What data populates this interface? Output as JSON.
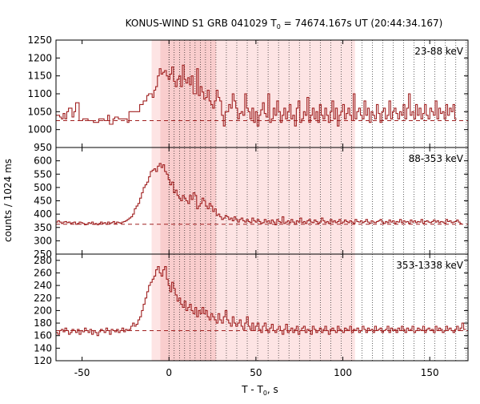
{
  "chart_data": {
    "type": "line",
    "title_main": "KONUS-WIND S1 GRB 041029 T",
    "title_sub": "0",
    "title_rest": " = 74674.167s UT (20:44:34.167)",
    "xlabel_main": "T - T",
    "xlabel_sub": "0",
    "xlabel_rest": ", s",
    "ylabel": "counts / 1024 ms",
    "xlim": [
      -65,
      172
    ],
    "xticks": [
      -50,
      0,
      50,
      100,
      150
    ],
    "colors": {
      "line": "#a02020",
      "shade_outer": "#fde4e4",
      "shade_inner": "#f9cdcd",
      "vline": "#000000"
    },
    "shaded_regions": [
      {
        "x0": -10,
        "x1": 107,
        "kind": "outer"
      },
      {
        "x0": -5,
        "x1": 27,
        "kind": "inner"
      }
    ],
    "dotted_vlines": [
      0,
      3,
      6,
      9,
      12,
      15,
      18,
      21,
      24,
      27,
      33,
      39,
      45,
      51,
      57,
      63,
      69,
      75,
      81,
      87,
      93,
      99,
      105,
      111,
      117,
      123,
      129,
      135,
      141,
      147,
      153,
      159,
      165,
      171
    ],
    "panels": [
      {
        "band": "23-88 keV",
        "ylim": [
          950,
          1250
        ],
        "yticks": [
          950,
          1000,
          1050,
          1100,
          1150,
          1200,
          1250
        ],
        "background": 1025,
        "series": {
          "name": "",
          "x_start": -65,
          "step": 1.024,
          "values": [
            1040,
            1040,
            1035,
            1030,
            1045,
            1030,
            1050,
            1060,
            1060,
            1035,
            1050,
            1075,
            1075,
            1025,
            1025,
            1030,
            1030,
            1030,
            1025,
            1025,
            1025,
            1020,
            1020,
            1020,
            1030,
            1030,
            1030,
            1025,
            1025,
            1040,
            1015,
            1015,
            1030,
            1035,
            1035,
            1030,
            1030,
            1030,
            1030,
            1030,
            1020,
            1050,
            1050,
            1050,
            1050,
            1050,
            1050,
            1070,
            1070,
            1080,
            1080,
            1095,
            1100,
            1100,
            1090,
            1110,
            1120,
            1150,
            1170,
            1155,
            1160,
            1165,
            1150,
            1140,
            1155,
            1175,
            1135,
            1120,
            1140,
            1150,
            1120,
            1180,
            1140,
            1130,
            1145,
            1125,
            1150,
            1100,
            1100,
            1170,
            1095,
            1120,
            1105,
            1085,
            1090,
            1110,
            1080,
            1070,
            1060,
            1080,
            1110,
            1090,
            1080,
            1040,
            1010,
            1050,
            1050,
            1070,
            1060,
            1100,
            1080,
            1060,
            1030,
            1045,
            1050,
            1040,
            1100,
            1060,
            1050,
            1030,
            1060,
            1020,
            1050,
            1010,
            1040,
            1055,
            1075,
            1045,
            1035,
            1100,
            1020,
            1030,
            1060,
            1040,
            1080,
            1050,
            1020,
            1040,
            1060,
            1030,
            1050,
            1070,
            1030,
            1040,
            1010,
            1060,
            1080,
            1020,
            1030,
            1050,
            1040,
            1090,
            1020,
            1040,
            1060,
            1030,
            1050,
            1020,
            1070,
            1040,
            1030,
            1060,
            1040,
            1020,
            1050,
            1080,
            1030,
            1060,
            1010,
            1040,
            1050,
            1070,
            1030,
            1045,
            1060,
            1040,
            1025,
            1100,
            1030,
            1050,
            1060,
            1040,
            1030,
            1080,
            1040,
            1060,
            1020,
            1050,
            1040,
            1030,
            1070,
            1045,
            1020,
            1050,
            1060,
            1030,
            1040,
            1080,
            1030,
            1050,
            1060,
            1045,
            1030,
            1050,
            1040,
            1070,
            1030,
            1060,
            1100,
            1040,
            1050,
            1030,
            1070,
            1040,
            1060,
            1030,
            1045,
            1070,
            1040,
            1030,
            1060,
            1050,
            1040,
            1080,
            1030,
            1060,
            1045,
            1050,
            1030,
            1070,
            1040,
            1060,
            1050,
            1070,
            1030
          ]
        }
      },
      {
        "band": "88-353 keV",
        "ylim": [
          250,
          650
        ],
        "yticks": [
          250,
          300,
          350,
          400,
          450,
          500,
          550,
          600
        ],
        "background": 362,
        "series": {
          "name": "",
          "x_start": -65,
          "step": 1.024,
          "values": [
            370,
            375,
            370,
            365,
            370,
            372,
            368,
            370,
            365,
            368,
            370,
            362,
            365,
            370,
            368,
            365,
            360,
            362,
            368,
            365,
            370,
            362,
            365,
            360,
            365,
            370,
            365,
            368,
            362,
            370,
            365,
            368,
            372,
            365,
            370,
            368,
            366,
            370,
            372,
            375,
            380,
            385,
            390,
            400,
            420,
            430,
            440,
            460,
            480,
            500,
            510,
            520,
            540,
            560,
            565,
            570,
            560,
            580,
            590,
            575,
            585,
            560,
            550,
            530,
            510,
            520,
            480,
            490,
            470,
            460,
            450,
            470,
            460,
            450,
            440,
            470,
            455,
            480,
            470,
            420,
            430,
            440,
            460,
            450,
            430,
            420,
            440,
            430,
            410,
            420,
            395,
            400,
            390,
            380,
            385,
            395,
            390,
            380,
            385,
            375,
            390,
            380,
            370,
            380,
            385,
            375,
            370,
            380,
            372,
            368,
            385,
            375,
            370,
            380,
            372,
            365,
            368,
            380,
            370,
            375,
            365,
            378,
            370,
            360,
            380,
            372,
            368,
            390,
            365,
            370,
            375,
            368,
            380,
            370,
            362,
            375,
            370,
            385,
            368,
            372,
            365,
            375,
            380,
            370,
            368,
            378,
            372,
            365,
            370,
            385,
            375,
            368,
            372,
            365,
            380,
            370,
            375,
            368,
            372,
            380,
            365,
            370,
            378,
            372,
            368,
            375,
            370,
            365,
            380,
            372,
            370,
            375,
            368,
            372,
            380,
            370,
            365,
            375,
            370,
            368,
            372,
            375,
            380,
            370,
            365,
            372,
            368,
            378,
            370,
            375,
            365,
            372,
            370,
            380,
            368,
            375,
            370,
            372,
            365,
            378,
            370,
            375,
            368,
            372,
            370,
            380,
            365,
            372,
            375,
            370,
            368,
            372,
            378,
            370,
            375,
            368,
            372,
            370,
            365,
            380,
            372,
            375,
            368,
            370,
            372,
            378,
            370,
            365
          ]
        }
      },
      {
        "band": "353-1338 keV",
        "ylim": [
          120,
          290
        ],
        "yticks": [
          120,
          140,
          160,
          180,
          200,
          220,
          240,
          260,
          280
        ],
        "background": 168,
        "series": {
          "name": "",
          "x_start": -65,
          "step": 1.024,
          "values": [
            165,
            162,
            168,
            170,
            166,
            172,
            168,
            162,
            165,
            170,
            168,
            165,
            170,
            162,
            168,
            166,
            172,
            168,
            165,
            170,
            162,
            168,
            165,
            160,
            166,
            170,
            168,
            165,
            172,
            168,
            162,
            170,
            168,
            166,
            170,
            165,
            168,
            172,
            166,
            170,
            168,
            170,
            175,
            180,
            175,
            178,
            185,
            190,
            200,
            210,
            220,
            230,
            240,
            245,
            250,
            255,
            265,
            270,
            260,
            255,
            265,
            270,
            250,
            240,
            230,
            245,
            235,
            225,
            215,
            220,
            210,
            205,
            215,
            200,
            205,
            210,
            200,
            195,
            205,
            190,
            200,
            195,
            205,
            195,
            200,
            190,
            185,
            195,
            190,
            185,
            180,
            195,
            185,
            180,
            190,
            200,
            185,
            180,
            175,
            190,
            180,
            175,
            180,
            185,
            175,
            170,
            180,
            190,
            175,
            170,
            180,
            168,
            175,
            180,
            170,
            165,
            175,
            180,
            170,
            165,
            172,
            178,
            168,
            165,
            170,
            175,
            168,
            162,
            170,
            178,
            165,
            168,
            172,
            165,
            170,
            175,
            162,
            168,
            172,
            175,
            165,
            170,
            168,
            162,
            175,
            170,
            165,
            168,
            172,
            165,
            170,
            175,
            168,
            162,
            170,
            172,
            168,
            165,
            175,
            170,
            168,
            165,
            172,
            170,
            168,
            175,
            165,
            170,
            168,
            172,
            165,
            168,
            175,
            170,
            165,
            172,
            168,
            170,
            165,
            175,
            168,
            170,
            172,
            165,
            168,
            170,
            175,
            165,
            172,
            168,
            170,
            165,
            172,
            168,
            175,
            170,
            165,
            172,
            168,
            170,
            175,
            165,
            168,
            172,
            170,
            168,
            175,
            165,
            170,
            172,
            168,
            170,
            165,
            175,
            168,
            172,
            170,
            165,
            168,
            175,
            170,
            172,
            168,
            165,
            170,
            175,
            168,
            172,
            180,
            170
          ]
        }
      }
    ]
  }
}
